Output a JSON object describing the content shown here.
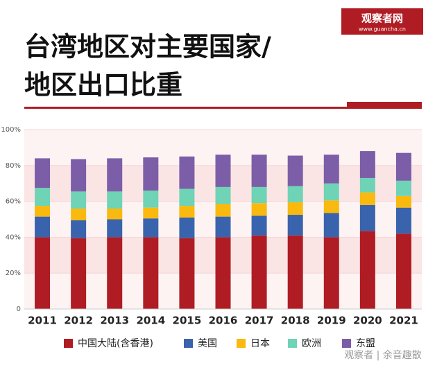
{
  "chart_data": {
    "type": "stacked_bar",
    "title_lines": [
      "台湾地区对主要国家/",
      "地区出口比重"
    ],
    "logo": {
      "name": "观察者网",
      "url": "www.guancha.cn"
    },
    "watermark": "观察者 | 余音趣散",
    "categories": [
      "2011",
      "2012",
      "2013",
      "2014",
      "2015",
      "2016",
      "2017",
      "2018",
      "2019",
      "2020",
      "2021"
    ],
    "series": [
      {
        "name": "中国大陆(含香港)",
        "color": "#b01c23",
        "values": [
          40,
          39.5,
          40,
          40,
          39.5,
          40,
          41,
          41,
          40,
          43.5,
          42
        ]
      },
      {
        "name": "美国",
        "color": "#3a63ad",
        "values": [
          11.5,
          10,
          10,
          10.5,
          11.5,
          11.5,
          11,
          11.5,
          13.5,
          14.5,
          14.5
        ]
      },
      {
        "name": "日本",
        "color": "#f9b90e",
        "values": [
          6,
          6.5,
          6,
          6,
          6.5,
          7,
          7,
          7,
          7,
          7,
          6.5
        ]
      },
      {
        "name": "欧洲",
        "color": "#6fd3b6",
        "values": [
          10,
          9.5,
          9.5,
          9.5,
          9.5,
          9.5,
          9,
          9,
          9.5,
          8,
          8.5
        ]
      },
      {
        "name": "东盟",
        "color": "#7b5ea7",
        "values": [
          16.5,
          18,
          18.5,
          18.5,
          18,
          18,
          18,
          17,
          16,
          15,
          15.5
        ]
      }
    ],
    "ylim": [
      0,
      100
    ],
    "yticks": [
      0,
      {
        "value": 20,
        "label": "20%"
      },
      {
        "value": 40,
        "label": "40%"
      },
      {
        "value": 60,
        "label": "60%"
      },
      {
        "value": 80,
        "label": "80%"
      },
      {
        "value": 100,
        "label": "100%"
      }
    ],
    "grid": true
  }
}
